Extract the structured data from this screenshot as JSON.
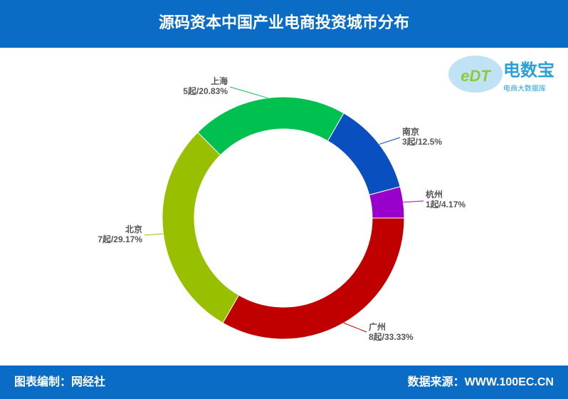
{
  "header": {
    "title": "源码资本中国产业电商投资城市分布"
  },
  "logo": {
    "mark": "eDT",
    "name": "电数宝",
    "subtitle": "电商大数据库"
  },
  "chart_data": {
    "type": "donut",
    "categories": [
      "南京",
      "杭州",
      "广州",
      "北京",
      "上海"
    ],
    "values": [
      12.5,
      4.17,
      33.33,
      29.17,
      20.83
    ],
    "value_labels": [
      "3起/12.5%",
      "1起/4.17%",
      "8起/33.33%",
      "7起/29.17%",
      "5起/20.83%"
    ],
    "colors": [
      "#0a4fc0",
      "#9900cc",
      "#c00000",
      "#99c000",
      "#00c050"
    ]
  },
  "footer": {
    "left": "图表编制：网经社",
    "right": "数据来源：WWW.100EC.CN"
  }
}
